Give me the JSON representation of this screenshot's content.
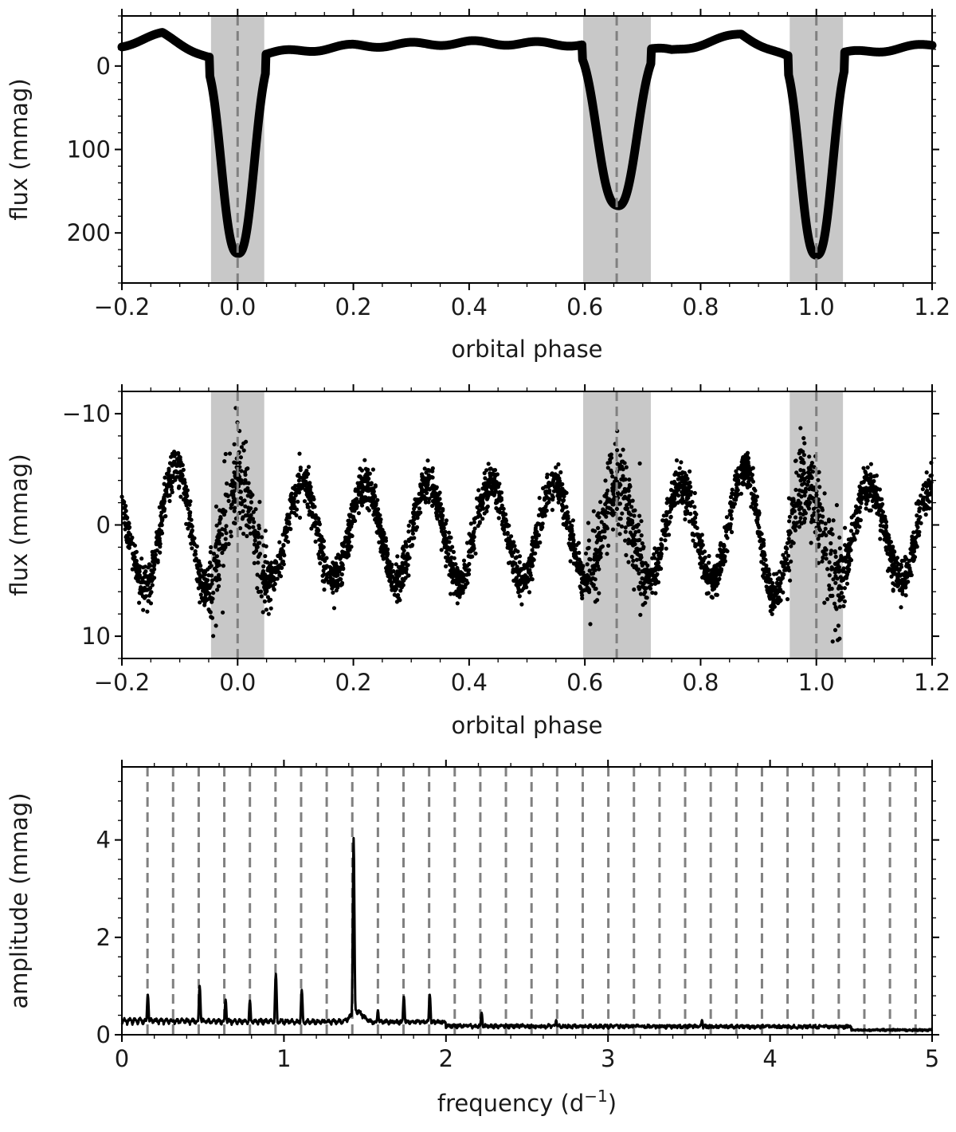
{
  "chart_data": [
    {
      "type": "line",
      "xlabel": "orbital phase",
      "ylabel": "flux (mmag)",
      "xlim": [
        -0.2,
        1.2
      ],
      "ylim": [
        260,
        -60
      ],
      "y_inverted": true,
      "xticks": [
        -0.2,
        0.0,
        0.2,
        0.4,
        0.6,
        0.8,
        1.0,
        1.2
      ],
      "xtick_labels": [
        "−0.2",
        "0.0",
        "0.2",
        "0.4",
        "0.6",
        "0.8",
        "1.0",
        "1.2"
      ],
      "yticks": [
        0,
        100,
        200
      ],
      "ytick_labels": [
        "0",
        "100",
        "200"
      ],
      "shaded_regions": [
        [
          -0.046,
          0.046
        ],
        [
          0.597,
          0.714
        ],
        [
          0.954,
          1.046
        ]
      ],
      "dashed_lines": [
        0.0,
        0.655,
        1.0
      ],
      "primary_eclipse": {
        "center": 0.0,
        "depth": 222,
        "width": 0.036
      },
      "secondary_eclipse": {
        "center": 0.655,
        "depth": 175,
        "width": 0.044
      },
      "baseline": {
        "x": [
          -0.2,
          -0.13,
          -0.05,
          0.05,
          0.2,
          0.4,
          0.6,
          0.75,
          0.87,
          0.95,
          1.05,
          1.2
        ],
        "y": [
          -25,
          -38,
          -10,
          -15,
          -24,
          -28,
          -26,
          -18,
          -38,
          -10,
          -15,
          -25
        ]
      },
      "grid": false
    },
    {
      "type": "scatter",
      "xlabel": "orbital phase",
      "ylabel": "flux (mmag)",
      "xlim": [
        -0.2,
        1.2
      ],
      "ylim": [
        12,
        -12
      ],
      "y_inverted": true,
      "xticks": [
        -0.2,
        0.0,
        0.2,
        0.4,
        0.6,
        0.8,
        1.0,
        1.2
      ],
      "xtick_labels": [
        "−0.2",
        "0.0",
        "0.2",
        "0.4",
        "0.6",
        "0.8",
        "1.0",
        "1.2"
      ],
      "yticks": [
        -10,
        0,
        10
      ],
      "ytick_labels": [
        "−10",
        "0",
        "10"
      ],
      "shaded_regions": [
        [
          -0.046,
          0.046
        ],
        [
          0.597,
          0.714
        ],
        [
          0.954,
          1.046
        ]
      ],
      "dashed_lines": [
        0.0,
        0.655,
        1.0
      ],
      "pulsation_period_phase": 0.109,
      "amplitude": 4.5,
      "grid": false
    },
    {
      "type": "line",
      "xlabel": "frequency (d",
      "xlabel_sup": "−1",
      "xlabel_tail": ")",
      "ylabel": "amplitude (mmag)",
      "xlim": [
        0,
        5
      ],
      "ylim": [
        0,
        5.5
      ],
      "xticks": [
        0,
        1,
        2,
        3,
        4,
        5
      ],
      "xtick_labels": [
        "0",
        "1",
        "2",
        "3",
        "4",
        "5"
      ],
      "yticks": [
        0,
        2,
        4
      ],
      "ytick_labels": [
        "0",
        "2",
        "4"
      ],
      "orbital_frequency": 0.158,
      "harmonic_lines_count": 31,
      "peaks": {
        "x": [
          0.16,
          0.32,
          0.48,
          0.64,
          0.79,
          0.95,
          1.11,
          1.27,
          1.43,
          1.58,
          1.74,
          1.9,
          2.22,
          2.68,
          3.58
        ],
        "y": [
          0.82,
          0.3,
          1.0,
          0.72,
          0.7,
          1.25,
          0.92,
          0.3,
          3.85,
          0.5,
          0.78,
          0.82,
          0.45,
          0.3,
          0.3
        ]
      },
      "grid": false
    }
  ]
}
